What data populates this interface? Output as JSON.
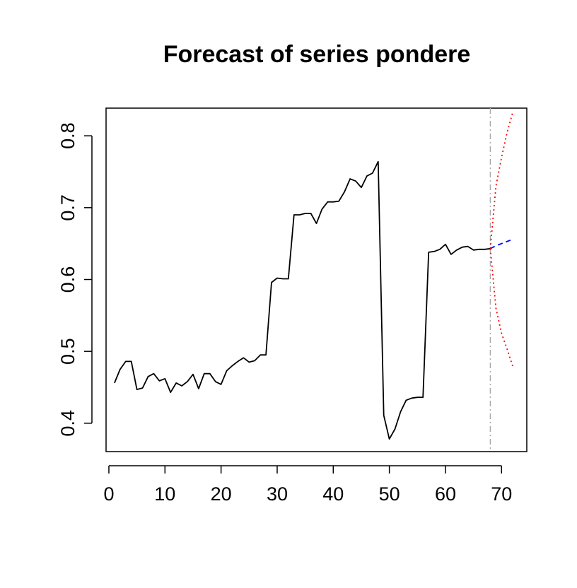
{
  "chart_data": {
    "type": "line",
    "title": "Forecast of series pondere",
    "xlabel": "",
    "ylabel": "",
    "xlim": [
      -0.5,
      74.5
    ],
    "ylim": [
      0.3605,
      0.8385
    ],
    "x_ticks": [
      0,
      10,
      20,
      30,
      40,
      50,
      60,
      70
    ],
    "y_ticks": [
      0.4,
      0.5,
      0.6,
      0.7,
      0.8
    ],
    "grid": false,
    "legend": "none",
    "series": [
      {
        "role": "observed",
        "color": "#000000",
        "style": "solid",
        "x": [
          1,
          2,
          3,
          4,
          5,
          6,
          7,
          8,
          9,
          10,
          11,
          12,
          13,
          14,
          15,
          16,
          17,
          18,
          19,
          20,
          21,
          22,
          23,
          24,
          25,
          26,
          27,
          28,
          29,
          30,
          31,
          32,
          33,
          34,
          35,
          36,
          37,
          38,
          39,
          40,
          41,
          42,
          43,
          44,
          45,
          46,
          47,
          48,
          49,
          50,
          51,
          52,
          53,
          54,
          55,
          56,
          57,
          58,
          59,
          60,
          61,
          62,
          63,
          64,
          65,
          66,
          67,
          68
        ],
        "values": [
          0.456,
          0.475,
          0.486,
          0.486,
          0.447,
          0.449,
          0.465,
          0.469,
          0.459,
          0.462,
          0.443,
          0.456,
          0.452,
          0.458,
          0.468,
          0.448,
          0.469,
          0.469,
          0.458,
          0.454,
          0.473,
          0.48,
          0.486,
          0.491,
          0.485,
          0.487,
          0.495,
          0.495,
          0.596,
          0.602,
          0.601,
          0.601,
          0.69,
          0.69,
          0.692,
          0.692,
          0.678,
          0.698,
          0.708,
          0.708,
          0.709,
          0.722,
          0.74,
          0.737,
          0.728,
          0.744,
          0.748,
          0.764,
          0.411,
          0.378,
          0.392,
          0.416,
          0.432,
          0.435,
          0.436,
          0.436,
          0.638,
          0.639,
          0.642,
          0.649,
          0.635,
          0.641,
          0.645,
          0.646,
          0.641,
          0.642,
          0.642,
          0.643
        ]
      },
      {
        "role": "forecast",
        "color": "#0000ff",
        "style": "dashed",
        "x": [
          68,
          69,
          70,
          71,
          72
        ],
        "values": [
          0.643,
          0.647,
          0.65,
          0.653,
          0.656
        ]
      },
      {
        "role": "upper",
        "color": "#ff0000",
        "style": "dotted",
        "x": [
          68,
          69,
          70,
          71,
          72
        ],
        "values": [
          0.643,
          0.73,
          0.77,
          0.805,
          0.833
        ]
      },
      {
        "role": "lower",
        "color": "#ff0000",
        "style": "dotted",
        "x": [
          68,
          69,
          70,
          71,
          72
        ],
        "values": [
          0.643,
          0.56,
          0.525,
          0.503,
          0.479
        ]
      }
    ],
    "vline": {
      "x": 68,
      "color": "#aaaaaa",
      "style": "dashdot"
    }
  }
}
